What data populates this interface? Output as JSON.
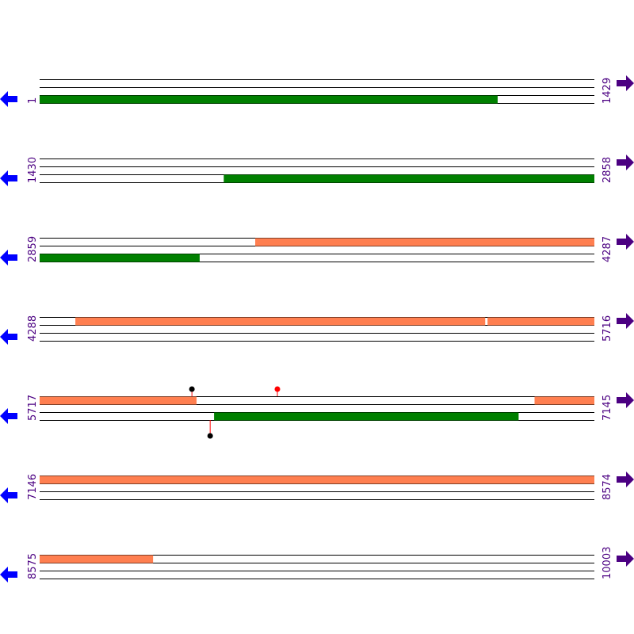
{
  "rows": [
    {
      "start": 1,
      "end": 1429,
      "features": [
        {
          "track": 1,
          "start": 1,
          "end": 1180,
          "color": "#008000"
        }
      ],
      "markers": []
    },
    {
      "start": 1430,
      "end": 2858,
      "features": [
        {
          "track": 1,
          "start": 1904,
          "end": 2858,
          "color": "#008000"
        }
      ],
      "markers": []
    },
    {
      "start": 2859,
      "end": 4287,
      "features": [
        {
          "track": 0,
          "start": 3414,
          "end": 4287,
          "color": "#ff7f50"
        },
        {
          "track": 1,
          "start": 2859,
          "end": 3271,
          "color": "#008000"
        }
      ],
      "markers": []
    },
    {
      "start": 4288,
      "end": 5716,
      "features": [
        {
          "track": 0,
          "start": 4380,
          "end": 5435,
          "color": "#ff7f50"
        },
        {
          "track": 0,
          "start": 5441,
          "end": 5716,
          "color": "#ff7f50"
        }
      ],
      "markers": []
    },
    {
      "start": 5717,
      "end": 7145,
      "features": [
        {
          "track": 0,
          "start": 5717,
          "end": 6121,
          "color": "#ff7f50"
        },
        {
          "track": 0,
          "start": 6991,
          "end": 7145,
          "color": "#ff7f50"
        },
        {
          "track": 1,
          "start": 6166,
          "end": 6950,
          "color": "#008000"
        }
      ],
      "markers": [
        {
          "track": 0,
          "position": 6109,
          "color": "#000000"
        },
        {
          "track": 0,
          "position": 6329,
          "color": "#ff0000"
        },
        {
          "track": 1,
          "position": 6156,
          "color": "#000000"
        }
      ]
    },
    {
      "start": 7146,
      "end": 8574,
      "features": [
        {
          "track": 0,
          "start": 7146,
          "end": 8574,
          "color": "#ff7f50"
        }
      ],
      "markers": []
    },
    {
      "start": 8575,
      "end": 10003,
      "features": [
        {
          "track": 0,
          "start": 8575,
          "end": 8867,
          "color": "#ff7f50"
        }
      ],
      "markers": []
    }
  ]
}
